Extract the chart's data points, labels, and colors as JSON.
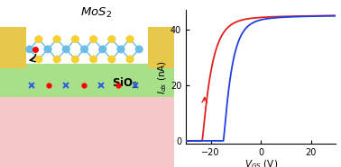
{
  "xlim": [
    -30,
    30
  ],
  "ylim": [
    -1,
    47
  ],
  "yticks": [
    0,
    20,
    40
  ],
  "xticks": [
    -20,
    0,
    20
  ],
  "red_arrow_vgs": -22,
  "blue_arrow_vgs": -15,
  "schematic": {
    "substrate_color": "#f7c8c8",
    "sio2_color": "#a8e08a",
    "electrode_color": "#e8c84a",
    "mo_color": "#6bbde8",
    "s_color": "#f5d030",
    "bond_color": "#6bbde8"
  }
}
